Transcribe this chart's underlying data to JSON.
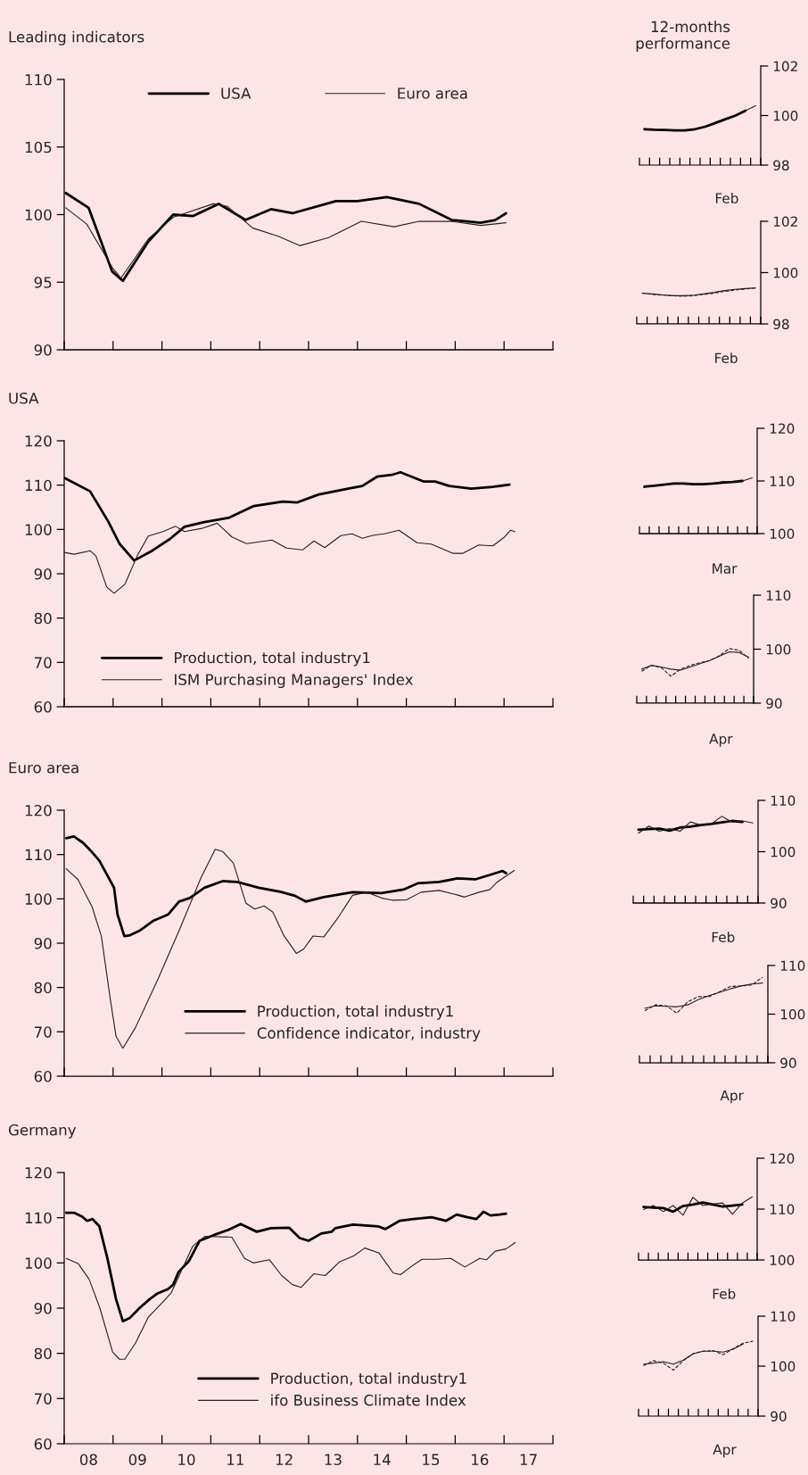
{
  "chart_data": [
    {
      "type": "line",
      "title": "Leading indicators",
      "xlim": [
        7.5,
        17.5
      ],
      "ylim": [
        90,
        110
      ],
      "yticks": [
        90,
        95,
        100,
        105,
        110
      ],
      "tick_labels": "y",
      "legend": "top",
      "xticks": [
        {
          "value": 7.5,
          "label": null
        },
        {
          "value": 8.5,
          "label": null
        },
        {
          "value": 9.5,
          "label": null
        },
        {
          "value": 10.5,
          "label": null
        },
        {
          "value": 11.5,
          "label": null
        },
        {
          "value": 12.5,
          "label": null
        },
        {
          "value": 13.5,
          "label": null
        },
        {
          "value": 14.5,
          "label": null
        },
        {
          "value": 15.5,
          "label": null
        },
        {
          "value": 16.5,
          "label": null
        },
        {
          "value": 17.5,
          "label": null
        }
      ],
      "series": [
        {
          "name": "USA",
          "color": "#000000",
          "x": [
            7.53,
            8.0,
            8.48,
            8.7,
            9.22,
            9.73,
            10.14,
            10.66,
            11.21,
            11.73,
            12.17,
            13.06,
            13.5,
            14.1,
            14.76,
            15.43,
            16.02,
            16.32,
            16.54
          ],
          "values": [
            101.6,
            100.5,
            95.8,
            95.1,
            98.0,
            100.0,
            99.9,
            100.8,
            99.6,
            100.4,
            100.1,
            101.0,
            101.0,
            101.3,
            100.8,
            99.6,
            99.4,
            99.6,
            100.1
          ]
        },
        {
          "name": "Euro area",
          "color": "#222222",
          "x": [
            7.53,
            7.96,
            8.48,
            8.66,
            9.22,
            9.73,
            10.55,
            10.84,
            11.36,
            11.88,
            12.32,
            12.91,
            13.58,
            14.25,
            14.76,
            15.43,
            16.02,
            16.54
          ],
          "values": [
            100.5,
            99.3,
            96.1,
            95.3,
            98.2,
            99.8,
            100.8,
            100.6,
            99.0,
            98.4,
            97.7,
            98.3,
            99.5,
            99.1,
            99.5,
            99.5,
            99.2,
            99.4
          ]
        }
      ]
    },
    {
      "type": "line",
      "title": "12-months\nperformance",
      "xlabel": "Feb",
      "categories": [
        null,
        null,
        null,
        null,
        null,
        null,
        null,
        null,
        null,
        null,
        null,
        null
      ],
      "ylim": [
        98,
        102
      ],
      "yticks": [
        98,
        100,
        102
      ],
      "tick_labels": "y",
      "series": [
        {
          "color": "#000000",
          "values": [
            99.45,
            99.43,
            99.42,
            99.4,
            99.4,
            99.45,
            99.55,
            99.7,
            99.85,
            100.0,
            100.2,
            null
          ]
        },
        {
          "color": "#222222",
          "values": [
            null,
            null,
            null,
            null,
            null,
            null,
            null,
            null,
            null,
            null,
            100.2,
            100.4
          ]
        }
      ]
    },
    {
      "type": "line",
      "xlabel": "Feb",
      "categories": [
        null,
        null,
        null,
        null,
        null,
        null,
        null,
        null,
        null,
        null,
        null,
        null
      ],
      "ylim": [
        98,
        102
      ],
      "yticks": [
        98,
        100,
        102
      ],
      "tick_labels": "y",
      "series": [
        {
          "color": "#222222",
          "values": [
            99.2,
            99.17,
            99.13,
            99.1,
            99.1,
            99.12,
            99.17,
            99.23,
            99.3,
            99.35,
            99.38,
            99.4
          ]
        },
        {
          "color": "#222222",
          "line_style": "dashed",
          "values": [
            99.2,
            99.15,
            99.12,
            99.1,
            99.08,
            99.1,
            99.15,
            99.2,
            99.27,
            99.32,
            99.36,
            99.4
          ]
        }
      ]
    },
    {
      "type": "line",
      "title": "USA",
      "xlim": [
        7.5,
        17.5
      ],
      "ylim": [
        60,
        120
      ],
      "yticks": [
        60,
        70,
        80,
        90,
        100,
        110,
        120
      ],
      "tick_labels": "y",
      "legend": "bottom left",
      "xticks": [
        {
          "value": 7.5,
          "label": null
        },
        {
          "value": 8.5,
          "label": null
        },
        {
          "value": 9.5,
          "label": null
        },
        {
          "value": 10.5,
          "label": null
        },
        {
          "value": 11.5,
          "label": null
        },
        {
          "value": 12.5,
          "label": null
        },
        {
          "value": 13.5,
          "label": null
        },
        {
          "value": 14.5,
          "label": null
        },
        {
          "value": 15.5,
          "label": null
        },
        {
          "value": 16.5,
          "label": null
        },
        {
          "value": 17.5,
          "label": null
        }
      ],
      "series": [
        {
          "name": "Production, total industry1",
          "color": "#000000",
          "x": [
            7.51,
            8.03,
            8.4,
            8.63,
            8.93,
            9.3,
            9.67,
            9.96,
            10.34,
            10.86,
            11.38,
            11.97,
            12.27,
            12.71,
            13.31,
            13.6,
            13.9,
            14.2,
            14.38,
            14.86,
            15.09,
            15.38,
            15.83,
            16.27,
            16.61
          ],
          "values": [
            111.6,
            108.6,
            101.8,
            96.8,
            93.0,
            95.2,
            97.9,
            100.6,
            101.6,
            102.6,
            105.3,
            106.3,
            106.1,
            107.9,
            109.2,
            109.8,
            111.9,
            112.3,
            112.9,
            110.8,
            110.8,
            109.8,
            109.2,
            109.6,
            110.1
          ]
        },
        {
          "name": "ISM Purchasing Managers' Index",
          "color": "#222222",
          "x": [
            7.51,
            7.7,
            8.03,
            8.15,
            8.37,
            8.52,
            8.74,
            9.0,
            9.22,
            9.52,
            9.78,
            9.96,
            10.34,
            10.63,
            10.93,
            11.23,
            11.75,
            12.05,
            12.38,
            12.61,
            12.83,
            13.16,
            13.39,
            13.6,
            13.83,
            14.05,
            14.35,
            14.72,
            15.01,
            15.46,
            15.65,
            15.98,
            16.27,
            16.5,
            16.63,
            16.72
          ],
          "values": [
            94.8,
            94.4,
            95.2,
            94.0,
            87.0,
            85.6,
            87.6,
            94.2,
            98.5,
            99.5,
            100.7,
            99.5,
            100.3,
            101.4,
            98.3,
            96.8,
            97.6,
            95.8,
            95.4,
            97.4,
            95.9,
            98.6,
            99.0,
            98.0,
            98.7,
            99.0,
            99.8,
            97.0,
            96.7,
            94.6,
            94.6,
            96.5,
            96.3,
            98.2,
            99.8,
            99.5
          ]
        }
      ]
    },
    {
      "type": "line",
      "xlabel": "Mar",
      "categories": [
        null,
        null,
        null,
        null,
        null,
        null,
        null,
        null,
        null,
        null,
        null,
        null
      ],
      "ylim": [
        100,
        120
      ],
      "yticks": [
        100,
        110,
        120
      ],
      "tick_labels": "y",
      "series": [
        {
          "color": "#000000",
          "values": [
            108.9,
            109.1,
            109.3,
            109.5,
            109.5,
            109.4,
            109.4,
            109.5,
            109.7,
            109.8,
            110.0,
            null
          ]
        },
        {
          "color": "#222222",
          "values": [
            null,
            null,
            null,
            null,
            null,
            null,
            null,
            109.5,
            109.9,
            109.8,
            110.0,
            110.6
          ]
        }
      ]
    },
    {
      "type": "line",
      "xlabel": "Apr",
      "categories": [
        null,
        null,
        null,
        null,
        null,
        null,
        null,
        null,
        null,
        null,
        null,
        null
      ],
      "ylim": [
        90,
        110
      ],
      "yticks": [
        90,
        100,
        110
      ],
      "tick_labels": "y",
      "series": [
        {
          "color": "#222222",
          "values": [
            96.3,
            97.0,
            96.7,
            96.3,
            96.1,
            96.7,
            97.3,
            97.9,
            98.7,
            99.5,
            99.4,
            98.5
          ]
        },
        {
          "color": "#222222",
          "line_style": "dashed",
          "values": [
            95.9,
            97.0,
            96.6,
            95.0,
            96.3,
            97.0,
            97.5,
            97.9,
            98.8,
            100.1,
            99.8,
            98.3
          ]
        }
      ]
    },
    {
      "type": "line",
      "title": "Euro area",
      "xlim": [
        7.5,
        17.5
      ],
      "ylim": [
        60,
        120
      ],
      "yticks": [
        60,
        70,
        80,
        90,
        100,
        110,
        120
      ],
      "tick_labels": "y",
      "legend": "bottom",
      "xticks": [
        {
          "value": 7.5,
          "label": null
        },
        {
          "value": 8.5,
          "label": null
        },
        {
          "value": 9.5,
          "label": null
        },
        {
          "value": 10.5,
          "label": null
        },
        {
          "value": 11.5,
          "label": null
        },
        {
          "value": 12.5,
          "label": null
        },
        {
          "value": 13.5,
          "label": null
        },
        {
          "value": 14.5,
          "label": null
        },
        {
          "value": 15.5,
          "label": null
        },
        {
          "value": 16.5,
          "label": null
        },
        {
          "value": 17.5,
          "label": null
        }
      ],
      "series": [
        {
          "name": "Production, total industry1",
          "color": "#000000",
          "x": [
            7.54,
            7.7,
            7.89,
            8.04,
            8.22,
            8.52,
            8.59,
            8.73,
            8.85,
            9.04,
            9.33,
            9.63,
            9.85,
            10.07,
            10.37,
            10.74,
            11.04,
            11.48,
            11.92,
            12.22,
            12.44,
            12.81,
            13.4,
            13.99,
            14.44,
            14.73,
            15.17,
            15.54,
            15.91,
            16.21,
            16.47,
            16.54
          ],
          "values": [
            113.7,
            114.1,
            112.6,
            110.9,
            108.6,
            102.5,
            96.5,
            91.6,
            91.8,
            92.8,
            95.1,
            96.5,
            99.4,
            100.2,
            102.5,
            104.0,
            103.8,
            102.5,
            101.6,
            100.7,
            99.4,
            100.4,
            101.5,
            101.3,
            102.1,
            103.5,
            103.8,
            104.6,
            104.4,
            105.4,
            106.3,
            105.8
          ]
        },
        {
          "name": "Confidence indicator, industry",
          "color": "#222222",
          "x": [
            7.54,
            7.78,
            8.07,
            8.26,
            8.44,
            8.56,
            8.7,
            8.96,
            9.41,
            9.85,
            10.3,
            10.59,
            10.74,
            10.96,
            11.22,
            11.4,
            11.59,
            11.77,
            11.99,
            12.25,
            12.4,
            12.59,
            12.81,
            13.1,
            13.4,
            13.69,
            13.99,
            14.21,
            14.51,
            14.8,
            15.17,
            15.54,
            15.69,
            15.99,
            16.21,
            16.36,
            16.71
          ],
          "values": [
            106.8,
            104.4,
            98.2,
            91.6,
            77.6,
            69.0,
            66.3,
            71.0,
            81.7,
            92.8,
            104.8,
            111.2,
            110.7,
            108.1,
            99.0,
            97.7,
            98.4,
            97.0,
            91.8,
            87.7,
            88.7,
            91.6,
            91.4,
            95.7,
            100.8,
            101.5,
            100.2,
            99.7,
            99.8,
            101.5,
            101.9,
            100.9,
            100.4,
            101.5,
            102.1,
            103.8,
            106.4
          ]
        }
      ]
    },
    {
      "type": "line",
      "xlabel": "Feb",
      "categories": [
        null,
        null,
        null,
        null,
        null,
        null,
        null,
        null,
        null,
        null,
        null,
        null
      ],
      "ylim": [
        90,
        110
      ],
      "yticks": [
        90,
        100,
        110
      ],
      "tick_labels": "y",
      "series": [
        {
          "color": "#000000",
          "values": [
            104.3,
            104.4,
            104.5,
            104.1,
            104.7,
            104.9,
            105.2,
            105.4,
            105.7,
            106.0,
            105.8,
            null
          ]
        },
        {
          "color": "#222222",
          "values": [
            103.6,
            105.0,
            104.0,
            104.5,
            104.0,
            105.8,
            105.2,
            105.4,
            106.9,
            105.8,
            106.0,
            105.6
          ]
        }
      ]
    },
    {
      "type": "line",
      "xlabel": "Apr",
      "categories": [
        null,
        null,
        null,
        null,
        null,
        null,
        null,
        null,
        null,
        null,
        null,
        null
      ],
      "ylim": [
        90,
        110
      ],
      "yticks": [
        90,
        100,
        110
      ],
      "tick_labels": "y",
      "series": [
        {
          "color": "#222222",
          "values": [
            101.2,
            101.7,
            101.6,
            101.5,
            101.9,
            103.0,
            103.8,
            104.5,
            105.2,
            105.8,
            106.2,
            106.4
          ]
        },
        {
          "color": "#222222",
          "line_style": "dashed",
          "values": [
            100.7,
            101.9,
            101.7,
            100.2,
            102.5,
            103.6,
            103.6,
            104.6,
            105.7,
            105.8,
            106.0,
            107.6
          ]
        }
      ]
    },
    {
      "type": "line",
      "title": "Germany",
      "xlim": [
        7.5,
        17.5
      ],
      "ylim": [
        60,
        120
      ],
      "yticks": [
        60,
        70,
        80,
        90,
        100,
        110,
        120
      ],
      "legend": "bottom",
      "xticks": [
        {
          "value": 7.5,
          "label": null
        },
        {
          "value": 8.5,
          "label": null
        },
        {
          "value": 9.5,
          "label": null
        },
        {
          "value": 10.5,
          "label": null
        },
        {
          "value": 11.5,
          "label": null
        },
        {
          "value": 12.5,
          "label": null
        },
        {
          "value": 13.5,
          "label": null
        },
        {
          "value": 14.5,
          "label": null
        },
        {
          "value": 15.5,
          "label": null
        },
        {
          "value": 16.5,
          "label": null
        },
        {
          "value": 17.5,
          "label": null
        },
        {
          "value": 8,
          "label": "08"
        },
        {
          "value": 9,
          "label": "09"
        },
        {
          "value": 10,
          "label": "10"
        },
        {
          "value": 11,
          "label": "11"
        },
        {
          "value": 12,
          "label": "12"
        },
        {
          "value": 13,
          "label": "13"
        },
        {
          "value": 14,
          "label": "14"
        },
        {
          "value": 15,
          "label": "15"
        },
        {
          "value": 16,
          "label": "16"
        },
        {
          "value": 17,
          "label": "17"
        }
      ],
      "series": [
        {
          "name": "Production, total industry1",
          "color": "#000000",
          "x": [
            7.54,
            7.7,
            7.86,
            7.97,
            8.08,
            8.22,
            8.38,
            8.56,
            8.7,
            8.85,
            9.03,
            9.25,
            9.4,
            9.62,
            9.73,
            9.84,
            10.05,
            10.27,
            10.57,
            10.86,
            11.11,
            11.44,
            11.73,
            12.1,
            12.32,
            12.5,
            12.76,
            12.97,
            13.05,
            13.41,
            13.92,
            14.07,
            14.36,
            14.65,
            15.02,
            15.31,
            15.53,
            15.75,
            15.93,
            16.08,
            16.22,
            16.41,
            16.54
          ],
          "values": [
            111.1,
            111.1,
            110.3,
            109.3,
            109.7,
            108.1,
            101.2,
            92.0,
            87.1,
            87.9,
            89.9,
            92.0,
            93.2,
            94.2,
            95.2,
            98.0,
            100.4,
            104.9,
            106.2,
            107.3,
            108.6,
            106.9,
            107.7,
            107.8,
            105.5,
            104.9,
            106.5,
            106.9,
            107.7,
            108.5,
            108.1,
            107.5,
            109.3,
            109.7,
            110.1,
            109.3,
            110.7,
            110.1,
            109.7,
            111.3,
            110.5,
            110.7,
            110.9
          ]
        },
        {
          "name": "ifo Business Climate Index",
          "color": "#222222",
          "x": [
            7.54,
            7.79,
            8.01,
            8.23,
            8.49,
            8.63,
            8.74,
            8.96,
            9.22,
            9.47,
            9.69,
            10.13,
            10.38,
            10.93,
            11.19,
            11.37,
            11.7,
            11.95,
            12.17,
            12.35,
            12.61,
            12.84,
            13.13,
            13.43,
            13.65,
            13.94,
            14.23,
            14.38,
            14.6,
            14.82,
            15.11,
            15.41,
            15.7,
            16.0,
            16.14,
            16.32,
            16.54,
            16.73
          ],
          "values": [
            101.0,
            99.8,
            96.4,
            90.0,
            80.3,
            78.7,
            78.7,
            82.3,
            88.0,
            90.8,
            93.4,
            103.7,
            105.9,
            105.7,
            101.0,
            100.0,
            100.7,
            97.2,
            95.2,
            94.6,
            97.6,
            97.2,
            100.2,
            101.6,
            103.3,
            102.2,
            97.8,
            97.4,
            99.2,
            100.8,
            100.8,
            101.0,
            99.1,
            101.0,
            100.7,
            102.6,
            103.1,
            104.5
          ]
        }
      ]
    },
    {
      "type": "line",
      "xlabel": "Feb",
      "categories": [
        null,
        null,
        null,
        null,
        null,
        null,
        null,
        null,
        null,
        null,
        null,
        null
      ],
      "ylim": [
        100,
        120
      ],
      "yticks": [
        100,
        110,
        120
      ],
      "tick_labels": "y",
      "series": [
        {
          "color": "#000000",
          "values": [
            110.4,
            110.3,
            110.2,
            109.5,
            110.6,
            110.9,
            111.3,
            110.9,
            110.5,
            110.7,
            110.9,
            null
          ]
        },
        {
          "color": "#222222",
          "values": [
            109.9,
            110.7,
            109.5,
            110.7,
            108.8,
            112.3,
            110.7,
            111.0,
            111.2,
            109.0,
            111.2,
            112.4
          ]
        }
      ]
    },
    {
      "type": "line",
      "xlabel": "Apr",
      "categories": [
        null,
        null,
        null,
        null,
        null,
        null,
        null,
        null,
        null,
        null,
        null,
        null
      ],
      "ylim": [
        90,
        110
      ],
      "yticks": [
        90,
        100,
        110
      ],
      "tick_labels": "y",
      "series": [
        {
          "color": "#222222",
          "values": [
            100.4,
            100.6,
            100.9,
            100.4,
            101.2,
            102.5,
            103.0,
            103.0,
            102.8,
            103.4,
            104.4,
            null
          ]
        },
        {
          "color": "#222222",
          "line_style": "dashed",
          "values": [
            100.1,
            101.1,
            100.6,
            99.2,
            101.1,
            102.5,
            103.0,
            103.1,
            102.3,
            103.5,
            104.6,
            105.0
          ]
        }
      ]
    }
  ]
}
